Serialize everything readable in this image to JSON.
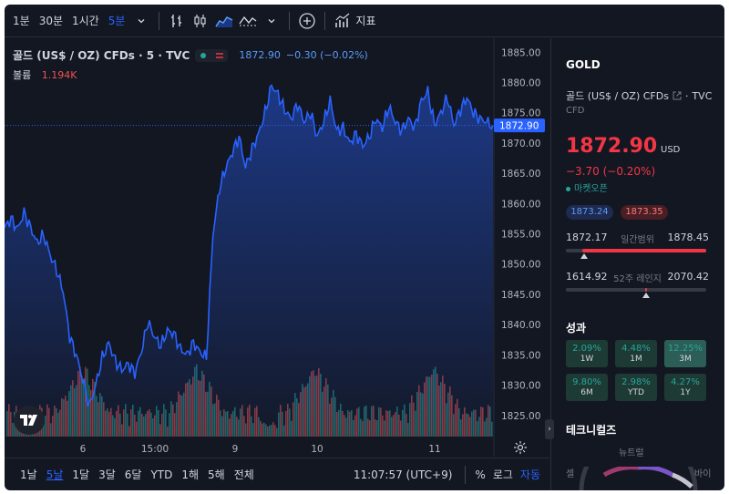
{
  "toolbar": {
    "intervals": [
      "1분",
      "30분",
      "1시간",
      "5분"
    ],
    "active_interval": "5분",
    "indicators_label": "지표"
  },
  "legend": {
    "title": "골드 (US$ / OZ) CFDs · 5 · TVC",
    "last": "1872.90",
    "change": "−0.30 (−0.02%)"
  },
  "volume": {
    "label": "볼륨",
    "value": "1.194K"
  },
  "chart_data": {
    "type": "area",
    "x_tick_labels": [
      "6",
      "15:00",
      "9",
      "10",
      "11"
    ],
    "y_tick_labels": [
      "1825.00",
      "1830.00",
      "1835.00",
      "1840.00",
      "1845.00",
      "1850.00",
      "1855.00",
      "1860.00",
      "1865.00",
      "1870.00",
      "1875.00",
      "1880.00",
      "1885.00"
    ],
    "ylim": [
      1821.5,
      1887.3
    ],
    "last_price_label": "1872.90",
    "series": [
      {
        "values": [
          1856.0,
          1857.5,
          1855.8,
          1858.5,
          1856.0,
          1853.5,
          1854.8,
          1851.5,
          1849.0,
          1845.5,
          1838.0,
          1835.0,
          1831.0,
          1826.5,
          1830.0,
          1834.5,
          1837.0,
          1834.0,
          1832.5,
          1833.5,
          1832.0,
          1835.5,
          1840.5,
          1838.0,
          1836.5,
          1839.0,
          1838.5,
          1836.0,
          1835.0,
          1837.0,
          1835.5,
          1834.5,
          1855.0,
          1862.5,
          1866.0,
          1868.5,
          1871.0,
          1866.0,
          1869.0,
          1871.5,
          1875.0,
          1879.5,
          1878.0,
          1875.5,
          1874.0,
          1876.5,
          1873.5,
          1875.0,
          1871.0,
          1873.5,
          1877.0,
          1872.0,
          1872.5,
          1870.0,
          1871.5,
          1869.5,
          1871.0,
          1874.0,
          1872.5,
          1876.0,
          1873.5,
          1872.0,
          1874.0,
          1872.5,
          1877.0,
          1878.5,
          1873.0,
          1875.0,
          1877.5,
          1873.0,
          1875.5,
          1877.5,
          1875.0,
          1874.0,
          1873.5,
          1872.9
        ]
      }
    ]
  },
  "ranges": [
    "1날",
    "5날",
    "1달",
    "3달",
    "6달",
    "YTD",
    "1해",
    "5해",
    "전체"
  ],
  "active_range": "5날",
  "clock": "11:07:57 (UTC+9)",
  "chart_options": {
    "percent": "%",
    "log": "로그",
    "auto": "자동"
  },
  "panel": {
    "symbol": "GOLD",
    "name": "골드 (US$ / OZ) CFDs",
    "exchange": "TVC",
    "type": "CFD",
    "price": "1872.90",
    "currency": "USD",
    "change": "−3.70 (−0.20%)",
    "market_status": "마켓오픈",
    "bid": "1873.24",
    "ask": "1873.35",
    "day_range": {
      "label": "일간범위",
      "low": "1872.17",
      "high": "1878.45",
      "fill_start": 0.12,
      "fill_end": 1.0,
      "marker": 0.13
    },
    "year_range": {
      "label": "52주 레인지",
      "low": "1614.92",
      "high": "2070.42",
      "marker": 0.57
    },
    "performance_title": "성과",
    "performance": [
      {
        "value": "2.09%",
        "period": "1W"
      },
      {
        "value": "4.48%",
        "period": "1M"
      },
      {
        "value": "12.25%",
        "period": "3M"
      },
      {
        "value": "9.80%",
        "period": "6M"
      },
      {
        "value": "2.98%",
        "period": "YTD"
      },
      {
        "value": "4.27%",
        "period": "1Y"
      }
    ],
    "technicals_title": "테크니컬즈",
    "technicals_neutral": "뉴트럴",
    "technicals_sell": "셀",
    "technicals_buy": "바이"
  },
  "colors": {
    "background": "#131722",
    "line": "#2962ff",
    "negative": "#f23645",
    "positive": "#26a69a"
  }
}
